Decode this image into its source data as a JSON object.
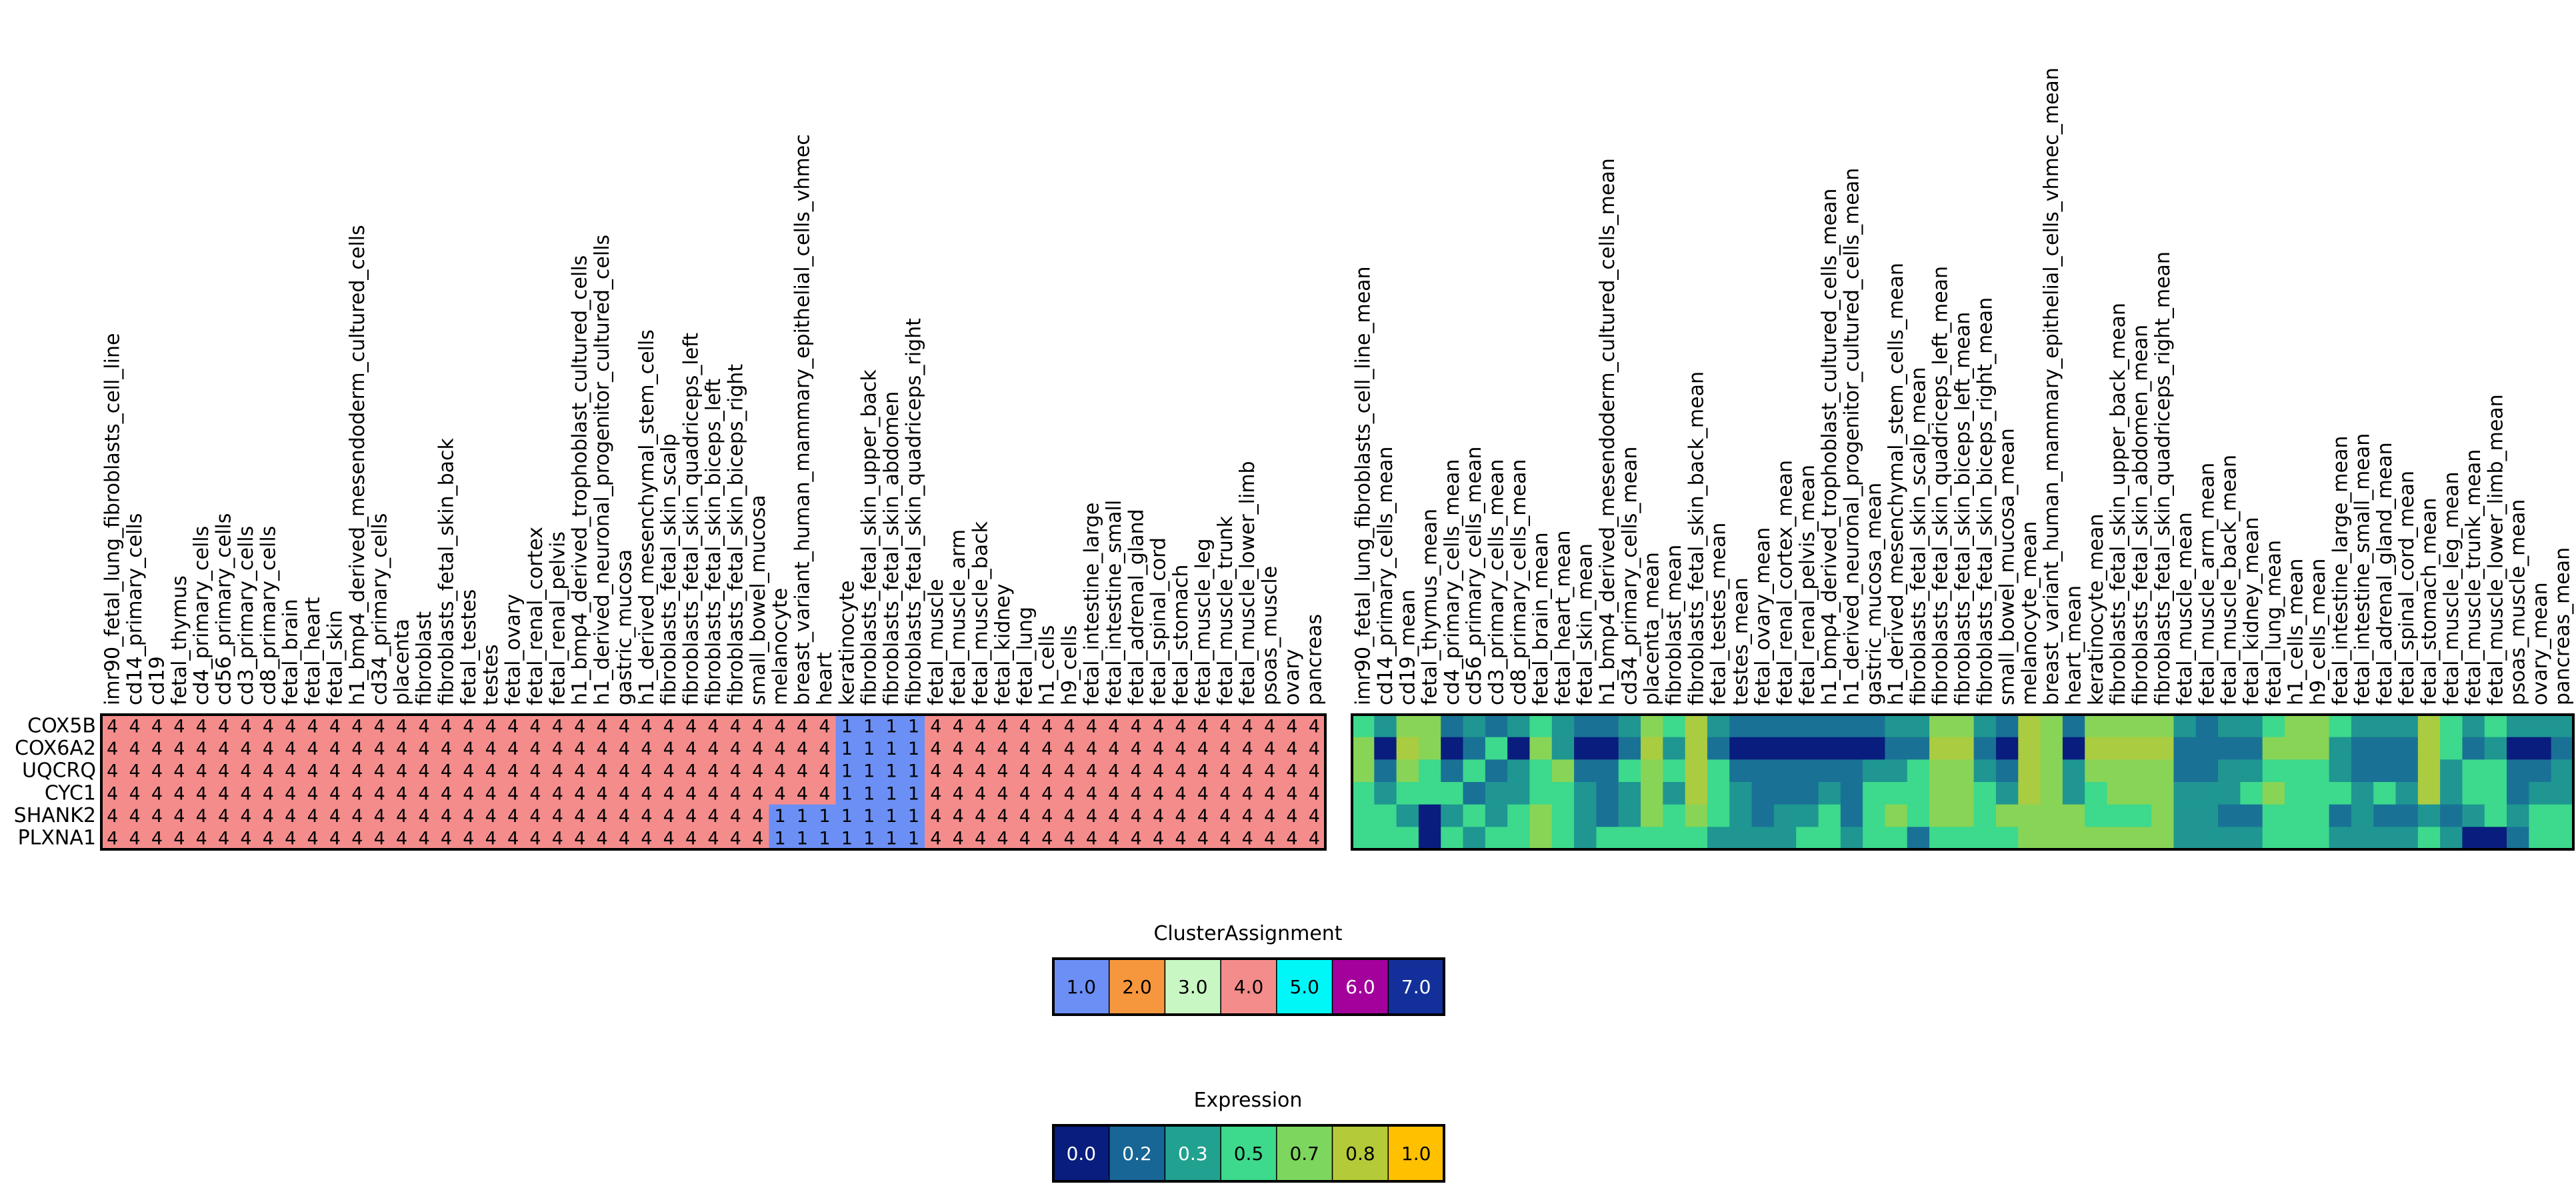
{
  "chart_data": [
    {
      "type": "heatmap",
      "title": "",
      "rows": [
        "COX5B",
        "COX6A2",
        "UQCRQ",
        "CYC1",
        "SHANK2",
        "PLXNA1"
      ],
      "columns": [
        "imr90_fetal_lung_fibroblasts_cell_line",
        "cd14_primary_cells",
        "cd19",
        "fetal_thymus",
        "cd4_primary_cells",
        "cd56_primary_cells",
        "cd3_primary_cells",
        "cd8_primary_cells",
        "fetal_brain",
        "fetal_heart",
        "fetal_skin",
        "h1_bmp4_derived_mesendoderm_cultured_cells",
        "cd34_primary_cells",
        "placenta",
        "fibroblast",
        "fibroblasts_fetal_skin_back",
        "fetal_testes",
        "testes",
        "fetal_ovary",
        "fetal_renal_cortex",
        "fetal_renal_pelvis",
        "h1_bmp4_derived_trophoblast_cultured_cells",
        "h1_derived_neuronal_progenitor_cultured_cells",
        "gastric_mucosa",
        "h1_derived_mesenchymal_stem_cells",
        "fibroblasts_fetal_skin_scalp",
        "fibroblasts_fetal_skin_quadriceps_left",
        "fibroblasts_fetal_skin_biceps_left",
        "fibroblasts_fetal_skin_biceps_right",
        "small_bowel_mucosa",
        "melanocyte",
        "breast_variant_human_mammary_epithelial_cells_vhmec",
        "heart",
        "keratinocyte",
        "fibroblasts_fetal_skin_upper_back",
        "fibroblasts_fetal_skin_abdomen",
        "fibroblasts_fetal_skin_quadriceps_right",
        "fetal_muscle",
        "fetal_muscle_arm",
        "fetal_muscle_back",
        "fetal_kidney",
        "fetal_lung",
        "h1_cells",
        "h9_cells",
        "fetal_intestine_large",
        "fetal_intestine_small",
        "fetal_adrenal_gland",
        "fetal_spinal_cord",
        "fetal_stomach",
        "fetal_muscle_leg",
        "fetal_muscle_trunk",
        "fetal_muscle_lower_limb",
        "psoas_muscle",
        "ovary",
        "pancreas"
      ],
      "values": [
        [
          4,
          4,
          4,
          4,
          4,
          4,
          4,
          4,
          4,
          4,
          4,
          4,
          4,
          4,
          4,
          4,
          4,
          4,
          4,
          4,
          4,
          4,
          4,
          4,
          4,
          4,
          4,
          4,
          4,
          4,
          4,
          4,
          4,
          1,
          1,
          1,
          1,
          4,
          4,
          4,
          4,
          4,
          4,
          4,
          4,
          4,
          4,
          4,
          4,
          4,
          4,
          4,
          4,
          4,
          4
        ],
        [
          4,
          4,
          4,
          4,
          4,
          4,
          4,
          4,
          4,
          4,
          4,
          4,
          4,
          4,
          4,
          4,
          4,
          4,
          4,
          4,
          4,
          4,
          4,
          4,
          4,
          4,
          4,
          4,
          4,
          4,
          4,
          4,
          4,
          1,
          1,
          1,
          1,
          4,
          4,
          4,
          4,
          4,
          4,
          4,
          4,
          4,
          4,
          4,
          4,
          4,
          4,
          4,
          4,
          4,
          4
        ],
        [
          4,
          4,
          4,
          4,
          4,
          4,
          4,
          4,
          4,
          4,
          4,
          4,
          4,
          4,
          4,
          4,
          4,
          4,
          4,
          4,
          4,
          4,
          4,
          4,
          4,
          4,
          4,
          4,
          4,
          4,
          4,
          4,
          4,
          1,
          1,
          1,
          1,
          4,
          4,
          4,
          4,
          4,
          4,
          4,
          4,
          4,
          4,
          4,
          4,
          4,
          4,
          4,
          4,
          4,
          4
        ],
        [
          4,
          4,
          4,
          4,
          4,
          4,
          4,
          4,
          4,
          4,
          4,
          4,
          4,
          4,
          4,
          4,
          4,
          4,
          4,
          4,
          4,
          4,
          4,
          4,
          4,
          4,
          4,
          4,
          4,
          4,
          4,
          4,
          4,
          1,
          1,
          1,
          1,
          4,
          4,
          4,
          4,
          4,
          4,
          4,
          4,
          4,
          4,
          4,
          4,
          4,
          4,
          4,
          4,
          4,
          4
        ],
        [
          4,
          4,
          4,
          4,
          4,
          4,
          4,
          4,
          4,
          4,
          4,
          4,
          4,
          4,
          4,
          4,
          4,
          4,
          4,
          4,
          4,
          4,
          4,
          4,
          4,
          4,
          4,
          4,
          4,
          4,
          1,
          1,
          1,
          1,
          1,
          1,
          1,
          4,
          4,
          4,
          4,
          4,
          4,
          4,
          4,
          4,
          4,
          4,
          4,
          4,
          4,
          4,
          4,
          4,
          4
        ],
        [
          4,
          4,
          4,
          4,
          4,
          4,
          4,
          4,
          4,
          4,
          4,
          4,
          4,
          4,
          4,
          4,
          4,
          4,
          4,
          4,
          4,
          4,
          4,
          4,
          4,
          4,
          4,
          4,
          4,
          4,
          1,
          1,
          1,
          1,
          1,
          1,
          1,
          4,
          4,
          4,
          4,
          4,
          4,
          4,
          4,
          4,
          4,
          4,
          4,
          4,
          4,
          4,
          4,
          4,
          4
        ]
      ],
      "cell_labels": true,
      "colorbar": {
        "title": "ClusterAssignment",
        "ticks": [
          "1.0",
          "2.0",
          "3.0",
          "4.0",
          "5.0",
          "6.0",
          "7.0"
        ],
        "colors": [
          "#6b8ff5",
          "#f7973d",
          "#c9f7c4",
          "#f48c8c",
          "#00f7f7",
          "#a4009c",
          "#13309a"
        ]
      }
    },
    {
      "type": "heatmap",
      "title": "",
      "rows": [
        "COX5B",
        "COX6A2",
        "UQCRQ",
        "CYC1",
        "SHANK2",
        "PLXNA1"
      ],
      "columns": [
        "imr90_fetal_lung_fibroblasts_cell_line_mean",
        "cd14_primary_cells_mean",
        "cd19_mean",
        "fetal_thymus_mean",
        "cd4_primary_cells_mean",
        "cd56_primary_cells_mean",
        "cd3_primary_cells_mean",
        "cd8_primary_cells_mean",
        "fetal_brain_mean",
        "fetal_heart_mean",
        "fetal_skin_mean",
        "h1_bmp4_derived_mesendoderm_cultured_cells_mean",
        "cd34_primary_cells_mean",
        "placenta_mean",
        "fibroblast_mean",
        "fibroblasts_fetal_skin_back_mean",
        "fetal_testes_mean",
        "testes_mean",
        "fetal_ovary_mean",
        "fetal_renal_cortex_mean",
        "fetal_renal_pelvis_mean",
        "h1_bmp4_derived_trophoblast_cultured_cells_mean",
        "h1_derived_neuronal_progenitor_cultured_cells_mean",
        "gastric_mucosa_mean",
        "h1_derived_mesenchymal_stem_cells_mean",
        "fibroblasts_fetal_skin_scalp_mean",
        "fibroblasts_fetal_skin_quadriceps_left_mean",
        "fibroblasts_fetal_skin_biceps_left_mean",
        "fibroblasts_fetal_skin_biceps_right_mean",
        "small_bowel_mucosa_mean",
        "melanocyte_mean",
        "breast_variant_human_mammary_epithelial_cells_vhmec_mean",
        "heart_mean",
        "keratinocyte_mean",
        "fibroblasts_fetal_skin_upper_back_mean",
        "fibroblasts_fetal_skin_abdomen_mean",
        "fibroblasts_fetal_skin_quadriceps_right_mean",
        "fetal_muscle_mean",
        "fetal_muscle_arm_mean",
        "fetal_muscle_back_mean",
        "fetal_kidney_mean",
        "fetal_lung_mean",
        "h1_cells_mean",
        "h9_cells_mean",
        "fetal_intestine_large_mean",
        "fetal_intestine_small_mean",
        "fetal_adrenal_gland_mean",
        "fetal_spinal_cord_mean",
        "fetal_stomach_mean",
        "fetal_muscle_leg_mean",
        "fetal_muscle_trunk_mean",
        "fetal_muscle_lower_limb_mean",
        "psoas_muscle_mean",
        "ovary_mean",
        "pancreas_mean"
      ],
      "values": [
        [
          0.5,
          0.3,
          0.7,
          0.7,
          0.2,
          0.3,
          0.2,
          0.3,
          0.5,
          0.3,
          0.2,
          0.2,
          0.3,
          0.7,
          0.5,
          0.8,
          0.3,
          0.2,
          0.2,
          0.2,
          0.2,
          0.2,
          0.2,
          0.2,
          0.3,
          0.3,
          0.7,
          0.7,
          0.3,
          0.2,
          0.8,
          0.7,
          0.2,
          0.7,
          0.7,
          0.7,
          0.7,
          0.3,
          0.2,
          0.3,
          0.3,
          0.5,
          0.7,
          0.7,
          0.5,
          0.3,
          0.3,
          0.3,
          0.8,
          0.5,
          0.3,
          0.5,
          0.3,
          0.3,
          0.3
        ],
        [
          0.7,
          0.0,
          0.8,
          0.7,
          0.0,
          0.2,
          0.5,
          0.0,
          0.7,
          0.3,
          0.0,
          0.0,
          0.2,
          0.8,
          0.3,
          0.8,
          0.2,
          0.0,
          0.0,
          0.0,
          0.0,
          0.0,
          0.0,
          0.0,
          0.2,
          0.2,
          0.8,
          0.8,
          0.2,
          0.0,
          0.8,
          0.7,
          0.0,
          0.8,
          0.8,
          0.8,
          0.8,
          0.2,
          0.2,
          0.2,
          0.2,
          0.7,
          0.7,
          0.7,
          0.3,
          0.2,
          0.2,
          0.2,
          0.8,
          0.5,
          0.2,
          0.3,
          0.0,
          0.0,
          0.2
        ],
        [
          0.7,
          0.2,
          0.7,
          0.5,
          0.2,
          0.5,
          0.2,
          0.3,
          0.5,
          0.7,
          0.2,
          0.2,
          0.5,
          0.7,
          0.5,
          0.8,
          0.5,
          0.2,
          0.2,
          0.2,
          0.2,
          0.2,
          0.2,
          0.3,
          0.3,
          0.5,
          0.7,
          0.7,
          0.3,
          0.2,
          0.8,
          0.7,
          0.3,
          0.7,
          0.7,
          0.7,
          0.7,
          0.2,
          0.2,
          0.3,
          0.3,
          0.5,
          0.5,
          0.5,
          0.3,
          0.2,
          0.2,
          0.2,
          0.8,
          0.3,
          0.5,
          0.5,
          0.2,
          0.2,
          0.3
        ],
        [
          0.5,
          0.3,
          0.5,
          0.5,
          0.5,
          0.2,
          0.3,
          0.3,
          0.5,
          0.5,
          0.3,
          0.2,
          0.3,
          0.7,
          0.3,
          0.8,
          0.5,
          0.3,
          0.2,
          0.2,
          0.2,
          0.3,
          0.2,
          0.5,
          0.5,
          0.5,
          0.7,
          0.7,
          0.5,
          0.3,
          0.8,
          0.7,
          0.3,
          0.5,
          0.7,
          0.7,
          0.7,
          0.3,
          0.3,
          0.3,
          0.5,
          0.7,
          0.5,
          0.5,
          0.5,
          0.3,
          0.5,
          0.3,
          0.8,
          0.3,
          0.5,
          0.5,
          0.2,
          0.3,
          0.3
        ],
        [
          0.5,
          0.5,
          0.3,
          0.0,
          0.3,
          0.5,
          0.3,
          0.5,
          0.7,
          0.5,
          0.3,
          0.2,
          0.3,
          0.7,
          0.5,
          0.7,
          0.5,
          0.3,
          0.2,
          0.3,
          0.3,
          0.5,
          0.2,
          0.5,
          0.7,
          0.5,
          0.7,
          0.7,
          0.5,
          0.7,
          0.7,
          0.7,
          0.7,
          0.5,
          0.5,
          0.5,
          0.7,
          0.3,
          0.3,
          0.2,
          0.2,
          0.5,
          0.5,
          0.5,
          0.2,
          0.3,
          0.2,
          0.2,
          0.3,
          0.2,
          0.3,
          0.5,
          0.3,
          0.5,
          0.5
        ],
        [
          0.5,
          0.5,
          0.5,
          0.0,
          0.5,
          0.3,
          0.5,
          0.5,
          0.7,
          0.5,
          0.3,
          0.5,
          0.5,
          0.5,
          0.5,
          0.5,
          0.3,
          0.3,
          0.3,
          0.3,
          0.5,
          0.5,
          0.3,
          0.5,
          0.5,
          0.2,
          0.5,
          0.5,
          0.5,
          0.5,
          0.7,
          0.7,
          0.7,
          0.7,
          0.7,
          0.7,
          0.7,
          0.3,
          0.3,
          0.3,
          0.3,
          0.5,
          0.5,
          0.5,
          0.3,
          0.3,
          0.3,
          0.3,
          0.5,
          0.3,
          0.0,
          0.0,
          0.2,
          0.5,
          0.5
        ]
      ],
      "cell_labels": false,
      "colorbar": {
        "title": "Expression",
        "ticks": [
          "0.0",
          "0.2",
          "0.3",
          "0.5",
          "0.7",
          "0.8",
          "1.0"
        ],
        "colors": [
          "#081d7d",
          "#176696",
          "#21a291",
          "#3dd98c",
          "#7dd65e",
          "#b5ca38",
          "#ffc000"
        ]
      }
    }
  ]
}
